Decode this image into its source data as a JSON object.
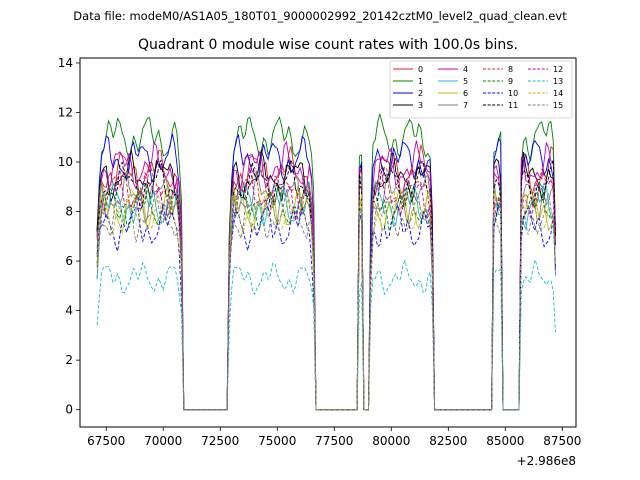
{
  "suptitle": "Data file: modeM0/AS1A05_180T01_9000002992_20142cztM0_level2_quad_clean.evt",
  "chart_data": {
    "type": "line",
    "title": "Quadrant 0 module wise count rates with 100.0s bins.",
    "xlabel": "",
    "ylabel": "",
    "x_offset_label": "+2.986e8",
    "xlim": [
      66350,
      88100
    ],
    "ylim": [
      -0.7,
      14.2
    ],
    "xticks": [
      67500,
      70000,
      72500,
      75000,
      77500,
      80000,
      82500,
      85000,
      87500
    ],
    "xtick_labels": [
      "67500",
      "70000",
      "72500",
      "75000",
      "77500",
      "80000",
      "82500",
      "85000",
      "87500"
    ],
    "yticks": [
      0,
      2,
      4,
      6,
      8,
      10,
      12,
      14
    ],
    "ytick_labels": [
      "0",
      "2",
      "4",
      "6",
      "8",
      "10",
      "12",
      "14"
    ],
    "legend_position": "top-right",
    "segments": [
      [
        67100,
        70800
      ],
      [
        72900,
        76600
      ],
      [
        78550,
        78750
      ],
      [
        79100,
        81800
      ],
      [
        84450,
        84800
      ],
      [
        85650,
        87200
      ]
    ],
    "gap_level": 0,
    "series": [
      {
        "name": "0",
        "color": "#d62728",
        "dash": "solid",
        "level": 9.6
      },
      {
        "name": "1",
        "color": "#008000",
        "dash": "solid",
        "level": 11.0
      },
      {
        "name": "2",
        "color": "#0000ff",
        "dash": "solid",
        "level": 10.1
      },
      {
        "name": "3",
        "color": "#000000",
        "dash": "solid",
        "level": 9.4
      },
      {
        "name": "4",
        "color": "#bf00bf",
        "dash": "solid",
        "level": 9.8
      },
      {
        "name": "5",
        "color": "#17becf",
        "dash": "solid",
        "level": 8.3
      },
      {
        "name": "6",
        "color": "#bcbd22",
        "dash": "solid",
        "level": 8.1
      },
      {
        "name": "7",
        "color": "#7f7f7f",
        "dash": "solid",
        "level": 8.6
      },
      {
        "name": "8",
        "color": "#d62728",
        "dash": "dashed",
        "level": 8.9
      },
      {
        "name": "9",
        "color": "#008000",
        "dash": "dashed",
        "level": 8.2
      },
      {
        "name": "10",
        "color": "#0000ff",
        "dash": "dashed",
        "level": 7.4
      },
      {
        "name": "11",
        "color": "#000000",
        "dash": "dashed",
        "level": 9.1
      },
      {
        "name": "12",
        "color": "#bf00bf",
        "dash": "dashed",
        "level": 8.7
      },
      {
        "name": "13",
        "color": "#17becf",
        "dash": "dashed",
        "level": 5.3
      },
      {
        "name": "14",
        "color": "#bcbd22",
        "dash": "dashed",
        "level": 8.0
      },
      {
        "name": "15",
        "color": "#7f7f7f",
        "dash": "dashed",
        "level": 7.8
      }
    ]
  }
}
